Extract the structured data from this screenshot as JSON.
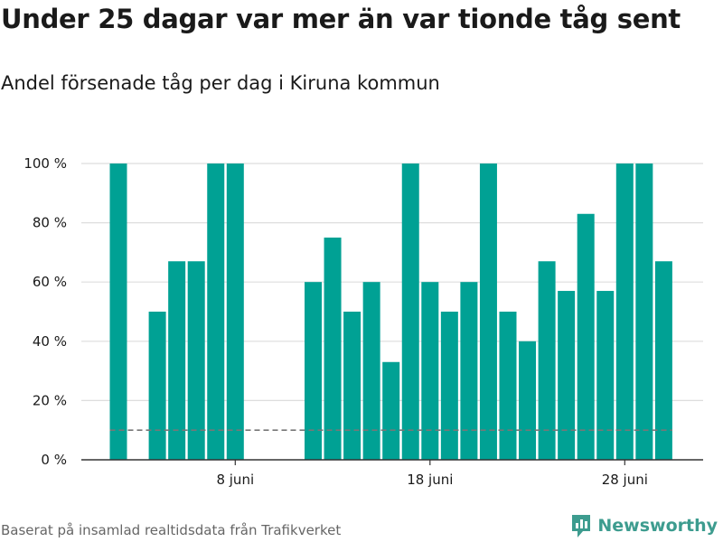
{
  "header": {
    "title": "Under 25 dagar var mer än var tionde tåg sent",
    "subtitle": "Andel försenade tåg per dag i Kiruna kommun"
  },
  "footer": {
    "source": "Baserat på insamlad realtidsdata från Trafikverket",
    "brand": "Newsworthy"
  },
  "colors": {
    "bar": "#00a194",
    "threshold": "#777777",
    "grid": "#dddddd",
    "brand": "#3d9c8f"
  },
  "chart_data": {
    "type": "bar",
    "title": "Under 25 dagar var mer än var tionde tåg sent",
    "subtitle": "Andel försenade tåg per dag i Kiruna kommun",
    "x_unit": "day of June",
    "x": [
      2,
      3,
      4,
      5,
      6,
      7,
      8,
      9,
      10,
      11,
      12,
      13,
      14,
      15,
      16,
      17,
      18,
      19,
      20,
      21,
      22,
      23,
      24,
      25,
      26,
      27,
      28,
      29,
      30
    ],
    "values": [
      100,
      null,
      50,
      67,
      67,
      100,
      100,
      null,
      null,
      null,
      60,
      75,
      50,
      60,
      33,
      100,
      60,
      50,
      60,
      100,
      50,
      40,
      67,
      57,
      83,
      57,
      100,
      100,
      67
    ],
    "ylim": [
      0,
      100
    ],
    "ytick_labels": [
      "0 %",
      "20 %",
      "40 %",
      "60 %",
      "80 %",
      "100 %"
    ],
    "ytick_values": [
      0,
      20,
      40,
      60,
      80,
      100
    ],
    "xtick_labels": [
      "8 juni",
      "18 juni",
      "28 juni"
    ],
    "xtick_values": [
      8,
      18,
      28
    ],
    "threshold": 10,
    "grid": true,
    "legend": "none"
  }
}
